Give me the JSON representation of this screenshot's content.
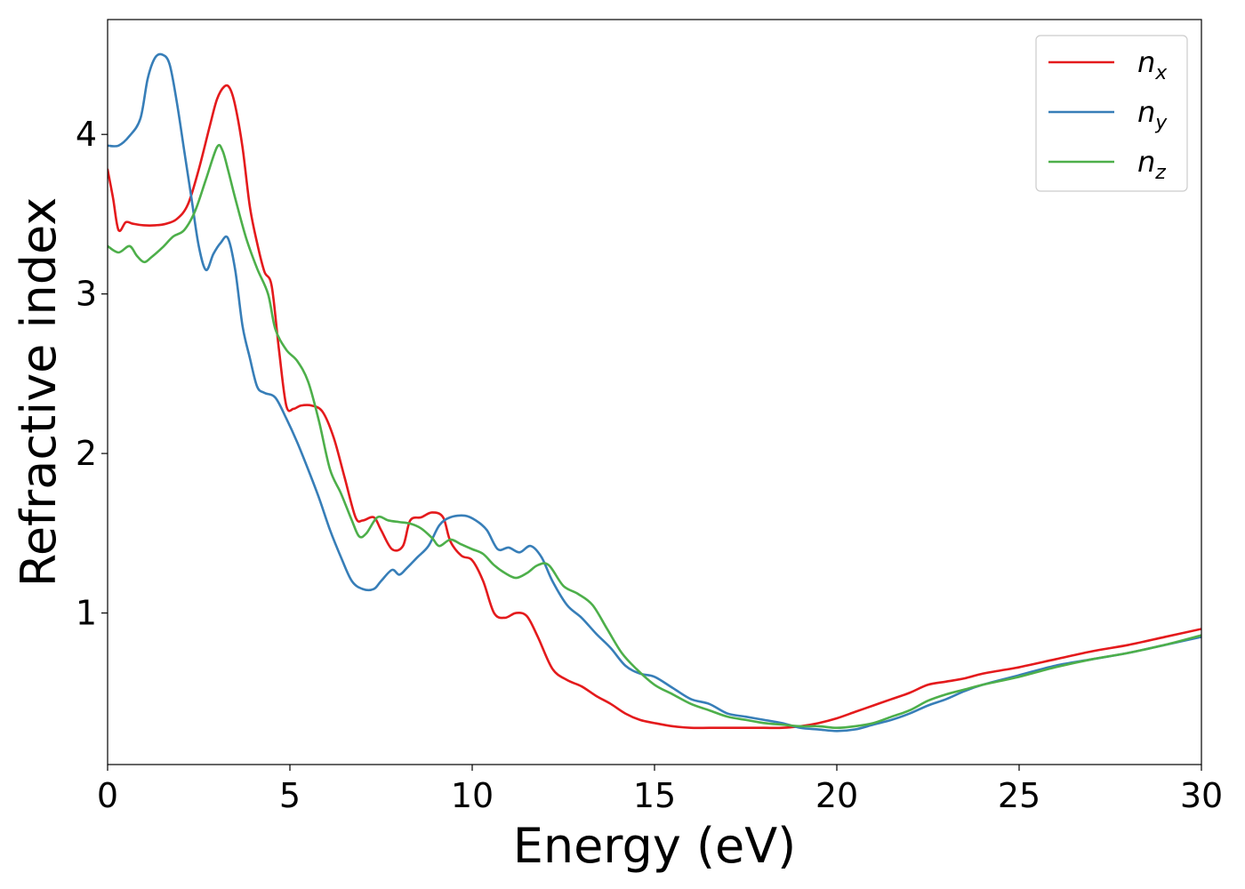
{
  "chart_data": {
    "type": "line",
    "xlabel": "Energy (eV)",
    "ylabel": "Refractive index",
    "xlim": [
      0,
      30
    ],
    "ylim": [
      0.05,
      4.72
    ],
    "xticks": [
      0,
      5,
      10,
      15,
      20,
      25,
      30
    ],
    "xtick_labels": [
      "0",
      "5",
      "10",
      "15",
      "20",
      "25",
      "30"
    ],
    "yticks": [
      1,
      2,
      3,
      4
    ],
    "ytick_labels": [
      "1",
      "2",
      "3",
      "4"
    ],
    "grid": false,
    "legend_position": "top-right",
    "series": [
      {
        "name": "n_x",
        "label_base": "n",
        "label_sub": "x",
        "color": "#e41a1c",
        "x": [
          0,
          0.15,
          0.3,
          0.5,
          0.7,
          1.0,
          1.3,
          1.6,
          1.9,
          2.2,
          2.5,
          2.8,
          3.0,
          3.2,
          3.35,
          3.5,
          3.7,
          3.9,
          4.1,
          4.3,
          4.5,
          4.7,
          4.9,
          5.1,
          5.3,
          5.6,
          5.9,
          6.2,
          6.5,
          6.8,
          7.0,
          7.3,
          7.5,
          7.8,
          8.1,
          8.3,
          8.6,
          8.9,
          9.2,
          9.4,
          9.7,
          10.0,
          10.3,
          10.6,
          10.9,
          11.2,
          11.5,
          11.8,
          12.2,
          12.6,
          13.0,
          13.4,
          13.8,
          14.2,
          14.6,
          15.0,
          15.5,
          16.0,
          16.5,
          17.0,
          17.5,
          18.0,
          18.5,
          19.0,
          19.5,
          20.0,
          20.5,
          21.0,
          21.5,
          22.0,
          22.5,
          23.0,
          23.5,
          24.0,
          24.5,
          25.0,
          26.0,
          27.0,
          28.0,
          29.0,
          30.0
        ],
        "y": [
          3.78,
          3.6,
          3.4,
          3.45,
          3.44,
          3.43,
          3.43,
          3.44,
          3.47,
          3.56,
          3.78,
          4.05,
          4.22,
          4.3,
          4.29,
          4.18,
          3.92,
          3.55,
          3.32,
          3.14,
          3.05,
          2.65,
          2.3,
          2.28,
          2.3,
          2.3,
          2.26,
          2.1,
          1.85,
          1.6,
          1.58,
          1.6,
          1.52,
          1.4,
          1.42,
          1.58,
          1.6,
          1.63,
          1.6,
          1.45,
          1.36,
          1.33,
          1.2,
          1.0,
          0.97,
          1.0,
          0.98,
          0.85,
          0.65,
          0.58,
          0.54,
          0.48,
          0.43,
          0.37,
          0.33,
          0.31,
          0.29,
          0.28,
          0.28,
          0.28,
          0.28,
          0.28,
          0.28,
          0.29,
          0.31,
          0.34,
          0.38,
          0.42,
          0.46,
          0.5,
          0.55,
          0.57,
          0.59,
          0.62,
          0.64,
          0.66,
          0.71,
          0.76,
          0.8,
          0.85,
          0.9
        ]
      },
      {
        "name": "n_y",
        "label_base": "n",
        "label_sub": "y",
        "color": "#377eb8",
        "x": [
          0,
          0.3,
          0.6,
          0.9,
          1.1,
          1.3,
          1.5,
          1.7,
          1.9,
          2.1,
          2.3,
          2.5,
          2.7,
          2.9,
          3.1,
          3.3,
          3.5,
          3.7,
          3.9,
          4.1,
          4.3,
          4.6,
          4.9,
          5.2,
          5.5,
          5.8,
          6.1,
          6.4,
          6.7,
          7.0,
          7.3,
          7.5,
          7.8,
          8.0,
          8.2,
          8.5,
          8.8,
          9.1,
          9.4,
          9.8,
          10.1,
          10.4,
          10.7,
          11.0,
          11.3,
          11.6,
          11.9,
          12.2,
          12.6,
          13.0,
          13.4,
          13.8,
          14.2,
          14.6,
          15.0,
          15.5,
          16.0,
          16.5,
          17.0,
          17.5,
          18.0,
          18.5,
          19.0,
          19.5,
          20.0,
          20.5,
          21.0,
          21.5,
          22.0,
          22.5,
          23.0,
          23.5,
          24.0,
          25.0,
          26.0,
          27.0,
          28.0,
          29.0,
          30.0
        ],
        "y": [
          3.93,
          3.93,
          3.99,
          4.1,
          4.35,
          4.48,
          4.5,
          4.44,
          4.2,
          3.9,
          3.6,
          3.3,
          3.15,
          3.25,
          3.32,
          3.35,
          3.15,
          2.8,
          2.6,
          2.42,
          2.38,
          2.35,
          2.22,
          2.07,
          1.9,
          1.72,
          1.52,
          1.35,
          1.2,
          1.15,
          1.15,
          1.2,
          1.27,
          1.24,
          1.28,
          1.35,
          1.42,
          1.55,
          1.6,
          1.61,
          1.58,
          1.52,
          1.4,
          1.41,
          1.38,
          1.42,
          1.35,
          1.2,
          1.05,
          0.97,
          0.87,
          0.78,
          0.67,
          0.62,
          0.6,
          0.53,
          0.46,
          0.43,
          0.37,
          0.35,
          0.33,
          0.31,
          0.28,
          0.27,
          0.26,
          0.27,
          0.3,
          0.33,
          0.37,
          0.42,
          0.46,
          0.51,
          0.55,
          0.61,
          0.67,
          0.71,
          0.75,
          0.8,
          0.85
        ]
      },
      {
        "name": "n_z",
        "label_base": "n",
        "label_sub": "z",
        "color": "#4daf4a",
        "x": [
          0,
          0.3,
          0.6,
          0.8,
          1.0,
          1.2,
          1.5,
          1.8,
          2.1,
          2.4,
          2.7,
          3.0,
          3.15,
          3.3,
          3.5,
          3.8,
          4.1,
          4.4,
          4.6,
          4.9,
          5.2,
          5.5,
          5.8,
          6.1,
          6.4,
          6.7,
          6.9,
          7.1,
          7.4,
          7.7,
          8.0,
          8.3,
          8.6,
          8.9,
          9.1,
          9.4,
          9.7,
          10.0,
          10.3,
          10.6,
          10.9,
          11.2,
          11.5,
          11.8,
          12.1,
          12.5,
          12.9,
          13.3,
          13.7,
          14.1,
          14.5,
          15.0,
          15.5,
          16.0,
          16.5,
          17.0,
          17.5,
          18.0,
          18.5,
          19.0,
          19.5,
          20.0,
          20.5,
          21.0,
          21.5,
          22.0,
          22.5,
          23.0,
          23.5,
          24.0,
          25.0,
          26.0,
          27.0,
          28.0,
          29.0,
          30.0
        ],
        "y": [
          3.3,
          3.26,
          3.3,
          3.24,
          3.2,
          3.23,
          3.29,
          3.36,
          3.4,
          3.52,
          3.72,
          3.92,
          3.9,
          3.78,
          3.6,
          3.35,
          3.16,
          3.0,
          2.78,
          2.65,
          2.58,
          2.45,
          2.2,
          1.9,
          1.75,
          1.58,
          1.48,
          1.5,
          1.6,
          1.58,
          1.57,
          1.56,
          1.53,
          1.47,
          1.42,
          1.46,
          1.43,
          1.4,
          1.37,
          1.3,
          1.25,
          1.22,
          1.25,
          1.3,
          1.3,
          1.17,
          1.12,
          1.05,
          0.9,
          0.75,
          0.65,
          0.55,
          0.49,
          0.43,
          0.39,
          0.35,
          0.33,
          0.31,
          0.3,
          0.29,
          0.29,
          0.28,
          0.29,
          0.31,
          0.35,
          0.39,
          0.45,
          0.49,
          0.52,
          0.55,
          0.6,
          0.66,
          0.71,
          0.75,
          0.8,
          0.86
        ]
      }
    ]
  }
}
